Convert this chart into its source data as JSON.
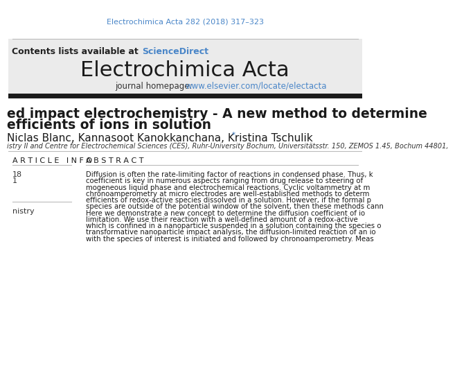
{
  "journal_ref": "Electrochimica Acta 282 (2018) 317–323",
  "journal_ref_color": "#4A86C8",
  "contents_text": "Contents lists available at ",
  "sciencedirect_text": "ScienceDirect",
  "sciencedirect_color": "#4A86C8",
  "journal_name": "Electrochimica Acta",
  "homepage_label": "journal homepage: ",
  "homepage_url": "www.elsevier.com/locate/electacta",
  "homepage_url_color": "#4A86C8",
  "article_title_line1": "ed impact electrochemistry - A new method to determine",
  "article_title_line2": "efficients of ions in solution",
  "authors": "Niclas Blanc, Kannasoot Kanokkanchana, Kristina Tschulik",
  "author_star": "*",
  "affiliation": "istry II and Centre for Electrochemical Sciences (CES), Ruhr-University Bochum, Universitätsstr. 150, ZEMOS 1.45, Bochum 44801,",
  "article_info_header": "A R T I C L E   I N F O",
  "abstract_header": "A B S T R A C T",
  "abstract_line1": "Diffusion is often the rate-limiting factor of reactions in condensed phase. Thus, k",
  "abstract_line2": "coefficient is key in numerous aspects ranging from drug release to steering of",
  "abstract_line3": "mogeneous liquid phase and electrochemical reactions. Cyclic voltammetry at m",
  "abstract_line4": "chronoamperometry at micro electrodes are well-established methods to determ",
  "abstract_line5": "efficients of redox-active species dissolved in a solution. However, if the formal p",
  "abstract_line6": "species are outside of the potential window of the solvent, then these methods cann",
  "abstract_line7": "Here we demonstrate a new concept to determine the diffusion coefficient of io",
  "abstract_line8": "limitation. We use their reaction with a well-defined amount of a redox-active",
  "abstract_line9": "which is confined in a nanoparticle suspended in a solution containing the species o",
  "abstract_line10": "transformative nanoparticle impact analysis, the diffusion-limited reaction of an io",
  "abstract_line11": "with the species of interest is initiated and followed by chronoamperometry. Meas",
  "left_col_line1": "18",
  "left_col_line2": "1",
  "left_col_line3": "nistry",
  "background_header_color": "#EBEBEB",
  "background_main_color": "#FFFFFF",
  "thick_line_color": "#1A1A1A",
  "thin_line_color": "#BBBBBB",
  "text_dark": "#1A1A1A",
  "text_mid": "#333333"
}
